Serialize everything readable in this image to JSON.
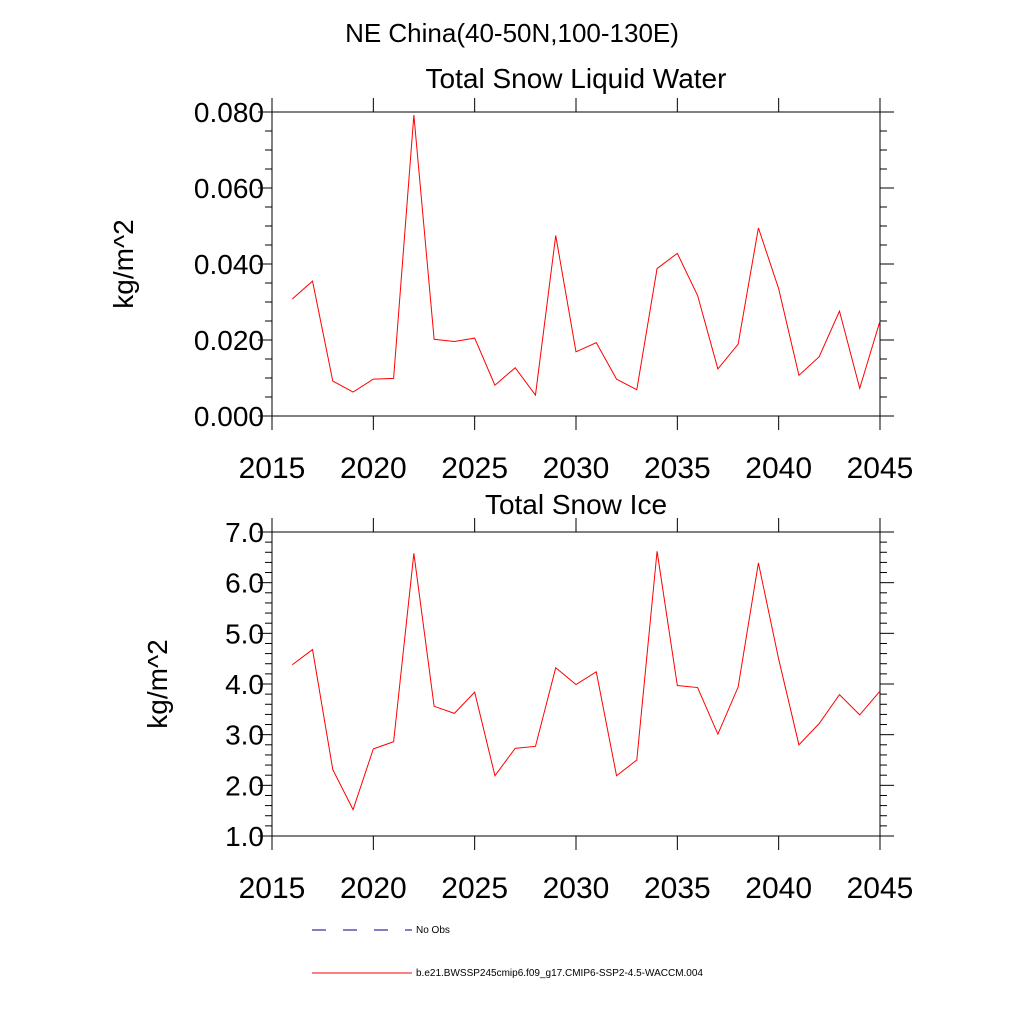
{
  "suptitle": "NE China(40-50N,100-130E)",
  "colors": {
    "series": "#ff0000",
    "obs": "#000080",
    "axis": "#000000"
  },
  "legend": {
    "obs_label": "No Obs",
    "model_label": "b.e21.BWSSP245cmip6.f09_g17.CMIP6-SSP2-4.5-WACCM.004"
  },
  "chart_data": [
    {
      "type": "line",
      "title": "Total Snow Liquid Water",
      "ylabel": "kg/m^2",
      "xlim": [
        2015,
        2045
      ],
      "ylim": [
        0.0,
        0.08
      ],
      "xticks": [
        "2015",
        "2020",
        "2025",
        "2030",
        "2035",
        "2040",
        "2045"
      ],
      "yticks": [
        "0.000",
        "0.020",
        "0.040",
        "0.060",
        "0.080"
      ],
      "yminor_step": 0.005,
      "x": [
        2016,
        2017,
        2018,
        2019,
        2020,
        2021,
        2022,
        2023,
        2024,
        2025,
        2026,
        2027,
        2028,
        2029,
        2030,
        2031,
        2032,
        2033,
        2034,
        2035,
        2036,
        2037,
        2038,
        2039,
        2040,
        2041,
        2042,
        2043,
        2044,
        2045
      ],
      "series": [
        {
          "values": [
            0.0308,
            0.0355,
            0.0092,
            0.0063,
            0.0097,
            0.0099,
            0.0792,
            0.0202,
            0.0196,
            0.0205,
            0.0081,
            0.0127,
            0.0055,
            0.0475,
            0.0169,
            0.0193,
            0.0097,
            0.0069,
            0.0388,
            0.0428,
            0.0317,
            0.0124,
            0.0189,
            0.0495,
            0.0335,
            0.0107,
            0.0156,
            0.0276,
            0.0073,
            0.025
          ]
        }
      ]
    },
    {
      "type": "line",
      "title": "Total Snow Ice",
      "ylabel": "kg/m^2",
      "xlim": [
        2015,
        2045
      ],
      "ylim": [
        1.0,
        7.0
      ],
      "xticks": [
        "2015",
        "2020",
        "2025",
        "2030",
        "2035",
        "2040",
        "2045"
      ],
      "yticks": [
        "1.0",
        "2.0",
        "3.0",
        "4.0",
        "5.0",
        "6.0",
        "7.0"
      ],
      "yminor_step": 0.2,
      "x": [
        2016,
        2017,
        2018,
        2019,
        2020,
        2021,
        2022,
        2023,
        2024,
        2025,
        2026,
        2027,
        2028,
        2029,
        2030,
        2031,
        2032,
        2033,
        2034,
        2035,
        2036,
        2037,
        2038,
        2039,
        2040,
        2041,
        2042,
        2043,
        2044,
        2045
      ],
      "series": [
        {
          "values": [
            4.38,
            4.68,
            2.31,
            1.52,
            2.72,
            2.86,
            6.58,
            3.56,
            3.42,
            3.84,
            2.19,
            2.73,
            2.77,
            4.32,
            3.99,
            4.24,
            2.19,
            2.5,
            6.62,
            3.97,
            3.93,
            3.01,
            3.94,
            6.39,
            4.49,
            2.8,
            3.22,
            3.79,
            3.39,
            3.86
          ]
        }
      ]
    }
  ]
}
